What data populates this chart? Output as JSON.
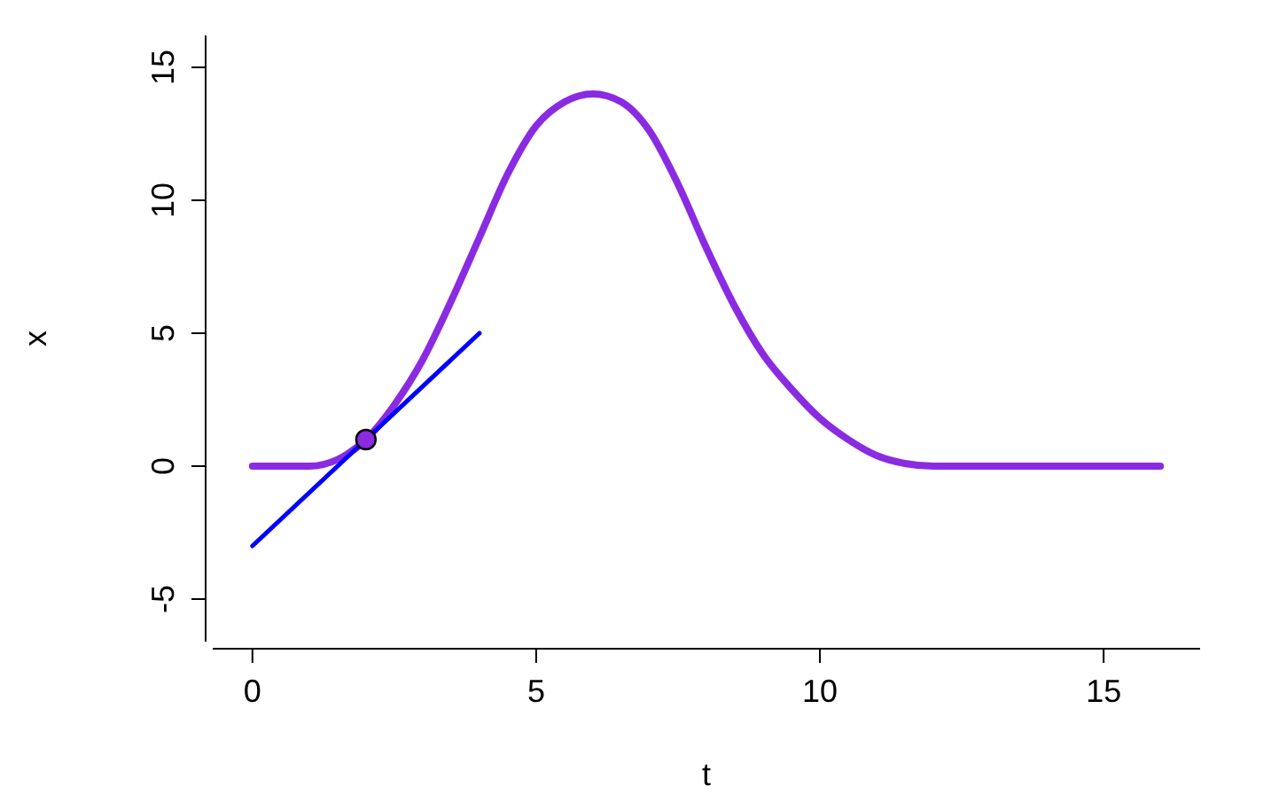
{
  "chart_data": {
    "type": "line",
    "xlabel": "t",
    "ylabel": "x",
    "xlim": [
      -0.7,
      16.7
    ],
    "ylim": [
      -6.6,
      16.2
    ],
    "xticks": [
      0,
      5,
      10,
      15
    ],
    "yticks": [
      -5,
      0,
      5,
      10,
      15
    ],
    "grid": false,
    "series": [
      {
        "color": "#8a2be2",
        "x": [
          0,
          0.5,
          1,
          1.5,
          2,
          2.5,
          3,
          3.5,
          4,
          4.5,
          5,
          5.5,
          6,
          6.5,
          7,
          7.5,
          8,
          8.5,
          9,
          9.5,
          10,
          10.5,
          11,
          11.5,
          12,
          13,
          14,
          15,
          16
        ],
        "values": [
          0,
          0,
          0,
          0.25,
          1,
          2.3,
          4,
          6.2,
          8.6,
          11,
          12.8,
          13.7,
          14,
          13.7,
          12.6,
          10.6,
          8.2,
          6,
          4.2,
          2.9,
          1.8,
          1,
          0.4,
          0.1,
          0,
          0,
          0,
          0,
          0
        ],
        "marker": "none"
      },
      {
        "color": "#0000ff",
        "x": [
          0,
          4
        ],
        "values": [
          -3,
          5
        ],
        "marker": "none"
      },
      {
        "type": "scatter",
        "color": "#8a2be2",
        "x": [
          2
        ],
        "values": [
          1
        ],
        "marker": "circle"
      }
    ]
  }
}
